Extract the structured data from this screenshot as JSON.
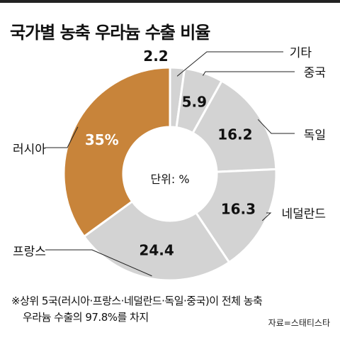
{
  "title": "국가별 농축 우라늄 수출 비율",
  "chart_data": {
    "type": "pie",
    "donut": true,
    "unit_label": "단위: %",
    "categories": [
      "기타",
      "중국",
      "독일",
      "네덜란드",
      "프랑스",
      "러시아"
    ],
    "values": [
      2.2,
      5.9,
      16.2,
      16.3,
      24.4,
      35
    ],
    "value_labels": [
      "2.2",
      "5.9",
      "16.2",
      "16.3",
      "24.4",
      "35%"
    ],
    "colors": [
      "#d3d3d3",
      "#d3d3d3",
      "#d3d3d3",
      "#d3d3d3",
      "#d3d3d3",
      "#c8843a"
    ]
  },
  "note": {
    "line1": "※상위 5국(러시아·프랑스·네덜란드·독일·중국)이 전체 농축",
    "line2": "우라늄 수출의 97.8%를 차지"
  },
  "source": "자료=스태티스타"
}
